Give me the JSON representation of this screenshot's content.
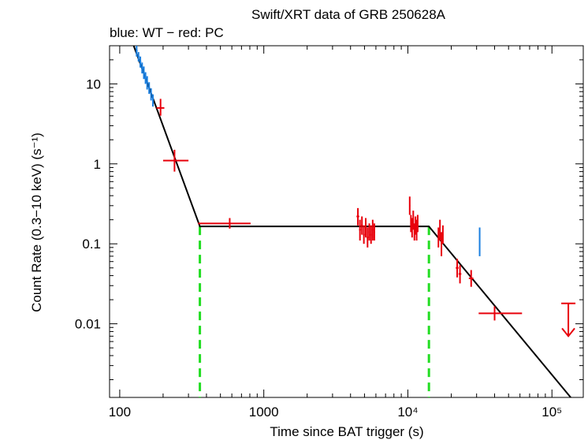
{
  "chart_data": {
    "type": "scatter",
    "title": "Swift/XRT data of GRB 250628A",
    "subtitle": "blue: WT − red: PC",
    "xlabel": "Time since BAT trigger (s)",
    "ylabel": "Count Rate (0.3−10 keV) (s⁻¹)",
    "xscale": "log",
    "yscale": "log",
    "xlim": [
      85,
      165000
    ],
    "ylim": [
      0.0012,
      30
    ],
    "x_ticks": [
      {
        "value": 100,
        "label": "100"
      },
      {
        "value": 1000,
        "label": "1000"
      },
      {
        "value": 10000,
        "label": "10⁴"
      },
      {
        "value": 100000,
        "label": "10⁵"
      }
    ],
    "y_ticks": [
      {
        "value": 10,
        "label": "10"
      },
      {
        "value": 1,
        "label": "1"
      },
      {
        "value": 0.1,
        "label": "0.1"
      },
      {
        "value": 0.01,
        "label": "0.01"
      }
    ],
    "colors": {
      "wt": "#1a7fe0",
      "pc": "#e8000b",
      "model": "#000000",
      "breaks": "#22dd22"
    },
    "series": [
      {
        "name": "WT",
        "points": [
          {
            "x": 131,
            "y": 26,
            "xerr": [
              2,
              2
            ],
            "yerr": [
              4,
              4
            ]
          },
          {
            "x": 135,
            "y": 22,
            "xerr": [
              2,
              2
            ],
            "yerr": [
              3,
              3
            ]
          },
          {
            "x": 139,
            "y": 19,
            "xerr": [
              2,
              2
            ],
            "yerr": [
              3,
              3
            ]
          },
          {
            "x": 143,
            "y": 16,
            "xerr": [
              2,
              2
            ],
            "yerr": [
              2.5,
              2.5
            ]
          },
          {
            "x": 147,
            "y": 14,
            "xerr": [
              2,
              2
            ],
            "yerr": [
              2.5,
              2.5
            ]
          },
          {
            "x": 151,
            "y": 12,
            "xerr": [
              2,
              2
            ],
            "yerr": [
              2,
              2
            ]
          },
          {
            "x": 155,
            "y": 10.5,
            "xerr": [
              2,
              2
            ],
            "yerr": [
              2,
              2
            ]
          },
          {
            "x": 160,
            "y": 9,
            "xerr": [
              2,
              2
            ],
            "yerr": [
              1.5,
              1.5
            ]
          },
          {
            "x": 165,
            "y": 7.5,
            "xerr": [
              2,
              2
            ],
            "yerr": [
              1.3,
              1.3
            ]
          },
          {
            "x": 170,
            "y": 6.3,
            "xerr": [
              2,
              2
            ],
            "yerr": [
              1.1,
              1.1
            ]
          },
          {
            "x": 31500,
            "y": 0.11,
            "xerr": [
              0,
              0
            ],
            "yerr": [
              0.04,
              0.05
            ]
          }
        ]
      },
      {
        "name": "PC",
        "points": [
          {
            "x": 192,
            "y": 5.0,
            "xerr": [
              12,
              12
            ],
            "yerr": [
              1.0,
              1.5
            ]
          },
          {
            "x": 240,
            "y": 1.1,
            "xerr": [
              40,
              60
            ],
            "yerr": [
              0.3,
              0.4
            ]
          },
          {
            "x": 420,
            "y": 0.18,
            "xerr": [
              70,
              160
            ],
            "yerr": [
              0,
              0
            ]
          },
          {
            "x": 580,
            "y": 0.18,
            "xerr": [
              0,
              230
            ],
            "yerr": [
              0.025,
              0.03
            ]
          },
          {
            "x": 4500,
            "y": 0.22,
            "xerr": [
              100,
              100
            ],
            "yerr": [
              0.05,
              0.06
            ]
          },
          {
            "x": 4650,
            "y": 0.15,
            "xerr": [
              70,
              70
            ],
            "yerr": [
              0.04,
              0.05
            ]
          },
          {
            "x": 4800,
            "y": 0.17,
            "xerr": [
              70,
              70
            ],
            "yerr": [
              0.04,
              0.05
            ]
          },
          {
            "x": 4950,
            "y": 0.13,
            "xerr": [
              70,
              70
            ],
            "yerr": [
              0.03,
              0.04
            ]
          },
          {
            "x": 5100,
            "y": 0.16,
            "xerr": [
              70,
              70
            ],
            "yerr": [
              0.04,
              0.05
            ]
          },
          {
            "x": 5250,
            "y": 0.12,
            "xerr": [
              70,
              70
            ],
            "yerr": [
              0.03,
              0.04
            ]
          },
          {
            "x": 5400,
            "y": 0.14,
            "xerr": [
              70,
              70
            ],
            "yerr": [
              0.03,
              0.04
            ]
          },
          {
            "x": 5550,
            "y": 0.13,
            "xerr": [
              70,
              70
            ],
            "yerr": [
              0.03,
              0.04
            ]
          },
          {
            "x": 5700,
            "y": 0.15,
            "xerr": [
              70,
              70
            ],
            "yerr": [
              0.04,
              0.05
            ]
          },
          {
            "x": 5850,
            "y": 0.14,
            "xerr": [
              70,
              70
            ],
            "yerr": [
              0.03,
              0.04
            ]
          },
          {
            "x": 10300,
            "y": 0.3,
            "xerr": [
              100,
              100
            ],
            "yerr": [
              0.07,
              0.09
            ]
          },
          {
            "x": 10500,
            "y": 0.18,
            "xerr": [
              100,
              100
            ],
            "yerr": [
              0.04,
              0.05
            ]
          },
          {
            "x": 10700,
            "y": 0.16,
            "xerr": [
              100,
              100
            ],
            "yerr": [
              0.04,
              0.05
            ]
          },
          {
            "x": 10900,
            "y": 0.2,
            "xerr": [
              100,
              100
            ],
            "yerr": [
              0.05,
              0.06
            ]
          },
          {
            "x": 11100,
            "y": 0.14,
            "xerr": [
              100,
              100
            ],
            "yerr": [
              0.03,
              0.04
            ]
          },
          {
            "x": 11300,
            "y": 0.17,
            "xerr": [
              100,
              100
            ],
            "yerr": [
              0.04,
              0.05
            ]
          },
          {
            "x": 11500,
            "y": 0.15,
            "xerr": [
              100,
              100
            ],
            "yerr": [
              0.04,
              0.05
            ]
          },
          {
            "x": 11700,
            "y": 0.18,
            "xerr": [
              100,
              100
            ],
            "yerr": [
              0.04,
              0.05
            ]
          },
          {
            "x": 16300,
            "y": 0.12,
            "xerr": [
              150,
              150
            ],
            "yerr": [
              0.03,
              0.04
            ]
          },
          {
            "x": 16700,
            "y": 0.15,
            "xerr": [
              150,
              150
            ],
            "yerr": [
              0.04,
              0.05
            ]
          },
          {
            "x": 17100,
            "y": 0.1,
            "xerr": [
              150,
              150
            ],
            "yerr": [
              0.03,
              0.04
            ]
          },
          {
            "x": 17500,
            "y": 0.13,
            "xerr": [
              150,
              150
            ],
            "yerr": [
              0.03,
              0.04
            ]
          },
          {
            "x": 22000,
            "y": 0.05,
            "xerr": [
              500,
              500
            ],
            "yerr": [
              0.012,
              0.015
            ]
          },
          {
            "x": 23000,
            "y": 0.042,
            "xerr": [
              500,
              500
            ],
            "yerr": [
              0.01,
              0.012
            ]
          },
          {
            "x": 27500,
            "y": 0.037,
            "xerr": [
              1000,
              1000
            ],
            "yerr": [
              0.008,
              0.01
            ]
          },
          {
            "x": 40000,
            "y": 0.0135,
            "xerr": [
              9000,
              22000
            ],
            "yerr": [
              0,
              0
            ]
          },
          {
            "x": 40000,
            "y": 0.0135,
            "xerr": [
              0,
              0
            ],
            "yerr": [
              0.0025,
              0.003
            ]
          }
        ]
      }
    ],
    "upper_limit": {
      "x": 130000,
      "y": 0.018,
      "to": 0.007
    },
    "model": {
      "x": [
        125,
        360,
        14000,
        135000
      ],
      "y": [
        34,
        0.165,
        0.165,
        0.0012
      ]
    },
    "breaks": [
      360,
      14000
    ]
  }
}
